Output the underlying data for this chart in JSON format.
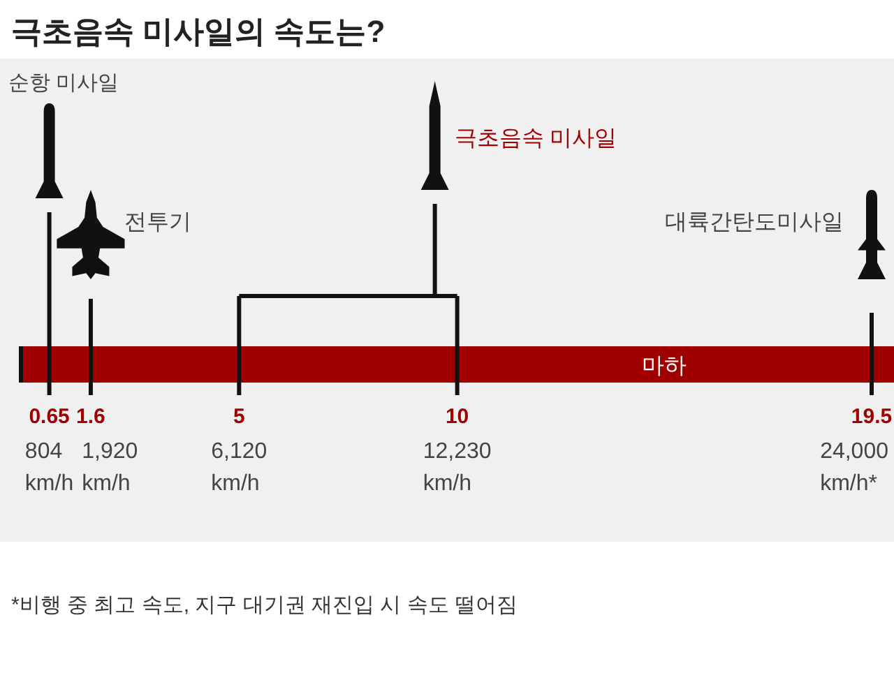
{
  "chart_data": {
    "type": "other",
    "title": "극초음속 미사일의 속도는?",
    "xlabel": "마하",
    "categories": [
      "순항 미사일",
      "전투기",
      null,
      "극초음속 미사일",
      "대륙간탄도미사일"
    ],
    "values": [
      0.65,
      1.6,
      5,
      10,
      19.5
    ],
    "data_labels": true,
    "annotations": [
      "804 km/h",
      "1,920 km/h",
      "6,120 km/h",
      "12,230 km/h",
      "24,000 km/h*",
      "*비행 중 최고 속도, 지구 대기권 재진입 시 속도 떨어짐"
    ]
  }
}
